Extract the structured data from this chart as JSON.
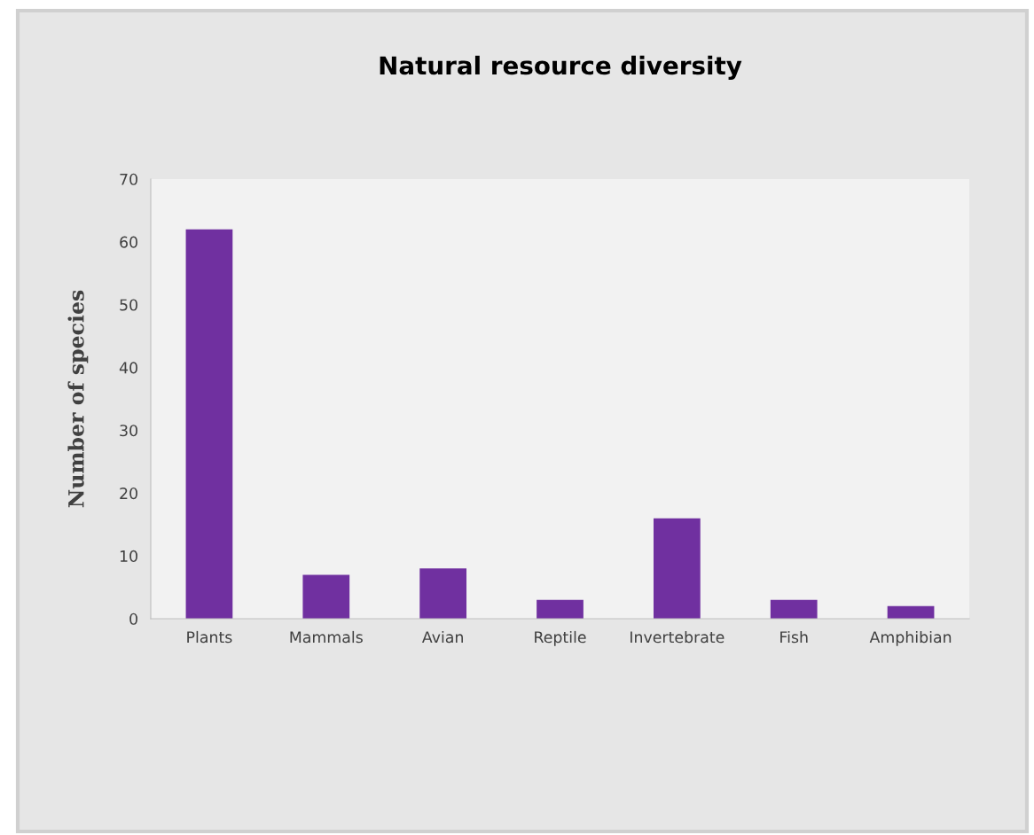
{
  "chart_data": {
    "type": "bar",
    "title": "Natural resource diversity",
    "ylabel": "Number of species",
    "categories": [
      "Plants",
      "Mammals",
      "Avian",
      "Reptile",
      "Invertebrate",
      "Fish",
      "Amphibian"
    ],
    "values": [
      62,
      7,
      8,
      3,
      16,
      3,
      2
    ],
    "color": "#7030a0",
    "ylim": [
      0,
      70
    ],
    "yticks": [
      0,
      10,
      20,
      30,
      40,
      50,
      60,
      70
    ],
    "grid": false,
    "legend": false
  }
}
